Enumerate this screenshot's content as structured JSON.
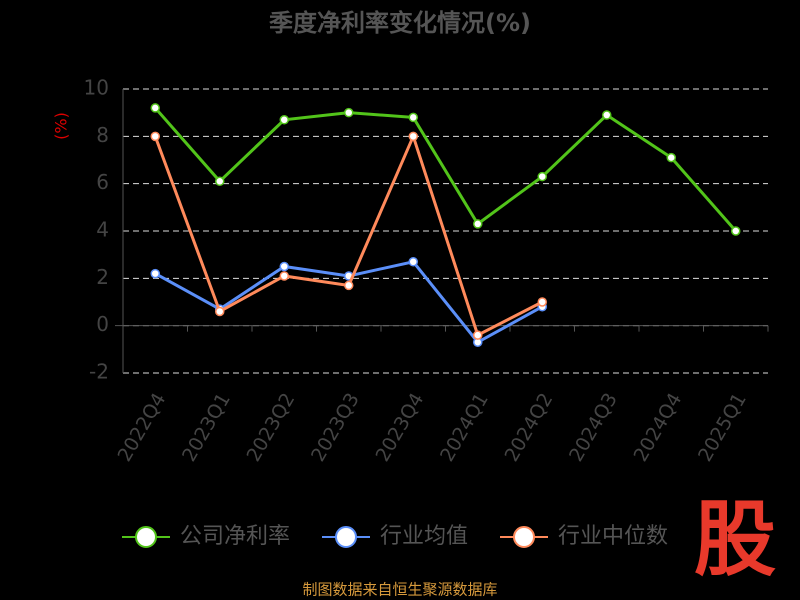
{
  "chart_data": {
    "type": "line",
    "title": "季度净利率变化情况(%)",
    "y_label": "(%)",
    "categories": [
      "2022Q4",
      "2023Q1",
      "2023Q2",
      "2023Q3",
      "2023Q4",
      "2024Q1",
      "2024Q2",
      "2024Q3",
      "2024Q4",
      "2025Q1"
    ],
    "series": [
      {
        "name": "公司净利率",
        "color": "#52c41a",
        "values": [
          9.2,
          6.1,
          8.7,
          9.0,
          8.8,
          4.3,
          6.3,
          8.9,
          7.1,
          4.0
        ]
      },
      {
        "name": "行业均值",
        "color": "#5b8ff9",
        "values": [
          2.2,
          0.7,
          2.5,
          2.1,
          2.7,
          -0.7,
          0.8,
          null,
          null,
          null
        ]
      },
      {
        "name": "行业中位数",
        "color": "#ff8a5b",
        "values": [
          8.0,
          0.6,
          2.1,
          1.7,
          8.0,
          -0.4,
          1.0,
          null,
          null,
          null
        ]
      }
    ],
    "ylim": [
      -2,
      10
    ],
    "yticks": [
      -2,
      0,
      2,
      4,
      6,
      8,
      10
    ],
    "grid": true,
    "source": "制图数据来自恒生聚源数据库",
    "logo": "股"
  }
}
